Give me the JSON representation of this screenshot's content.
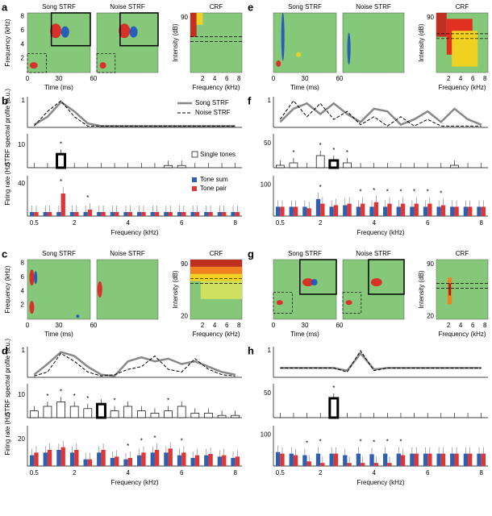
{
  "panels": [
    {
      "type": "strf",
      "label": "a",
      "titles": [
        "Song STRF",
        "Noise STRF",
        "CRF"
      ],
      "ylabel": "Frequency (kHz)",
      "yticks": [
        2,
        4,
        6,
        8
      ],
      "xlabel": "Time (ms)",
      "xticks": [
        0,
        30,
        60
      ],
      "crf_ylabel": "Intensity (dB)",
      "crf_yticks": [
        90
      ],
      "crf_xlabel": "Frequency (kHz)",
      "crf_xticks": [
        2,
        4,
        6,
        8
      ]
    },
    {
      "type": "profile",
      "label": "b",
      "profile_ylabel": "STRF spectral profile (a.u.)",
      "profile_ytick": 1,
      "profile_ylim": [
        0,
        1.15
      ],
      "song": [
        0.1,
        0.4,
        0.95,
        0.6,
        0.15,
        0.05,
        0.05,
        0.05,
        0.05,
        0.05,
        0.05,
        0.05,
        0.05,
        0.05,
        0.05,
        0.05
      ],
      "noise": [
        0.05,
        0.6,
        1,
        0.4,
        0.05,
        0.05,
        0.05,
        0.05,
        0.05,
        0.05,
        0.05,
        0.05,
        0.05,
        0.05,
        0.05,
        0.05
      ],
      "legend": [
        "Song STRF",
        "Noise STRF",
        "Single tones",
        "Tone sum",
        "Tone pair"
      ],
      "single": [
        0,
        0,
        6,
        0,
        0,
        0,
        0,
        0,
        0,
        0,
        1,
        1,
        0,
        0,
        0,
        0
      ],
      "single_ylim": [
        0,
        15
      ],
      "single_ytick": 10,
      "single_stars": [
        2
      ],
      "bold": 2,
      "rate_ylabel": "Firing rate (Hz)",
      "sum": [
        5,
        5,
        5,
        5,
        5,
        5,
        5,
        5,
        5,
        5,
        5,
        5,
        5,
        5,
        5,
        5
      ],
      "pair": [
        5,
        5,
        28,
        5,
        8,
        5,
        5,
        5,
        5,
        5,
        5,
        5,
        5,
        5,
        5,
        5
      ],
      "pair_ylim": [
        0,
        50
      ],
      "pair_ytick": 40,
      "pair_stars": [
        2,
        4
      ],
      "star": "*",
      "xticks": [
        0.5,
        2,
        4,
        6,
        8
      ],
      "xlabel": "Frequency (kHz)"
    },
    {
      "type": "strf",
      "label": "c",
      "titles": [
        "Song STRF",
        "Noise STRF",
        "CRF"
      ],
      "ylabel": "Frequency (kHz)",
      "yticks": [
        2,
        4,
        6,
        8
      ],
      "xlabel": "Time (ms)",
      "xticks": [
        0,
        30,
        60
      ],
      "crf_ylabel": "Intensity (dB)",
      "crf_yticks": [
        90,
        20
      ],
      "crf_xlabel": "Frequency (kHz)",
      "crf_xticks": [
        2,
        4,
        6,
        8
      ]
    },
    {
      "type": "profile",
      "label": "d",
      "profile_ylabel": "STRF spectral profile (a.u.)",
      "profile_ytick": 1,
      "profile_ylim": [
        0,
        1.15
      ],
      "song": [
        0.1,
        0.5,
        0.95,
        0.8,
        0.4,
        0.1,
        0.05,
        0.6,
        0.75,
        0.6,
        0.7,
        0.5,
        0.6,
        0.4,
        0.2,
        0.1
      ],
      "noise": [
        0.05,
        0.2,
        0.9,
        0.6,
        0.2,
        0.05,
        0.1,
        0.3,
        0.4,
        0.8,
        0.3,
        0.2,
        0.7,
        0.3,
        0.1,
        0.05
      ],
      "single": [
        3,
        5,
        7,
        5,
        4,
        6,
        3,
        5,
        3,
        2,
        3,
        5,
        2,
        2,
        1,
        1
      ],
      "single_ylim": [
        0,
        15
      ],
      "single_ytick": 10,
      "single_stars": [
        1,
        2,
        3,
        4,
        6,
        10
      ],
      "bold": 5,
      "rate_ylabel": "Firing rate (Hz)",
      "sum": [
        8,
        10,
        12,
        10,
        5,
        10,
        6,
        5,
        8,
        10,
        10,
        8,
        6,
        8,
        7,
        6
      ],
      "pair": [
        10,
        12,
        14,
        12,
        5,
        12,
        7,
        6,
        10,
        12,
        13,
        10,
        8,
        9,
        8,
        7
      ],
      "pair_ylim": [
        0,
        30
      ],
      "pair_ytick": 20,
      "pair_stars": [
        7,
        8,
        9,
        11
      ],
      "star": "*",
      "xticks": [
        0.5,
        2,
        4,
        6,
        8
      ],
      "xlabel": "Frequency (kHz)"
    },
    {
      "type": "strf",
      "label": "e",
      "titles": [
        "Song STRF",
        "Noise STRF",
        "CRF"
      ],
      "xlabel": "Time (ms)",
      "xticks": [
        0,
        30,
        60
      ],
      "crf_ylabel": "Intensity (dB)",
      "crf_yticks": [
        90
      ],
      "crf_xlabel": "Frequency (kHz)",
      "crf_xticks": [
        2,
        4,
        6,
        8
      ]
    },
    {
      "type": "profile",
      "label": "f",
      "profile_ytick": 1,
      "profile_ylim": [
        0,
        1.15
      ],
      "song": [
        0.2,
        0.7,
        0.9,
        0.5,
        0.9,
        0.5,
        0.2,
        0.7,
        0.6,
        0.1,
        0.3,
        0.6,
        0.2,
        0.7,
        0.3,
        0.1
      ],
      "noise": [
        0.3,
        1,
        0.4,
        0.9,
        0.3,
        0.6,
        0.1,
        0.4,
        0.05,
        0.4,
        0.05,
        0.3,
        0.05,
        0.05,
        0.05,
        0.05
      ],
      "single": [
        5,
        10,
        0,
        25,
        15,
        10,
        0,
        0,
        0,
        0,
        0,
        0,
        0,
        5,
        0,
        0
      ],
      "single_ylim": [
        0,
        70
      ],
      "single_ytick": 50,
      "single_stars": [
        1,
        3,
        4,
        5
      ],
      "bold": 4,
      "sum": [
        30,
        30,
        30,
        55,
        30,
        35,
        30,
        30,
        30,
        30,
        30,
        30,
        30,
        30,
        30,
        30
      ],
      "pair": [
        30,
        30,
        25,
        40,
        35,
        40,
        40,
        45,
        40,
        40,
        40,
        40,
        35,
        30,
        30,
        30
      ],
      "pair_ylim": [
        0,
        130
      ],
      "pair_ytick": 100,
      "pair_stars": [
        3,
        6,
        7,
        8,
        9,
        10,
        11,
        12
      ],
      "star": "*",
      "xticks": [
        0.5,
        2,
        4,
        6,
        8
      ],
      "xlabel": "Frequency (kHz)"
    },
    {
      "type": "strf",
      "label": "g",
      "titles": [
        "Song STRF",
        "Noise STRF",
        "CRF"
      ],
      "xlabel": "Time (ms)",
      "xticks": [
        0,
        30,
        60
      ],
      "crf_ylabel": "Intensity (dB)",
      "crf_yticks": [
        90,
        20
      ],
      "crf_xlabel": "Frequency (kHz)",
      "crf_xticks": [
        2,
        4,
        6,
        8
      ]
    },
    {
      "type": "profile",
      "label": "h",
      "profile_ytick": 1,
      "profile_ylim": [
        0,
        1.15
      ],
      "song": [
        0.35,
        0.35,
        0.35,
        0.35,
        0.35,
        0.25,
        0.9,
        0.3,
        0.35,
        0.35,
        0.35,
        0.35,
        0.35,
        0.35,
        0.35,
        0.35
      ],
      "noise": [
        0.35,
        0.35,
        0.35,
        0.35,
        0.35,
        0.2,
        1,
        0.25,
        0.35,
        0.35,
        0.35,
        0.35,
        0.35,
        0.35,
        0.35,
        0.35
      ],
      "single": [
        0,
        0,
        0,
        0,
        40,
        0,
        0,
        0,
        0,
        0,
        0,
        0,
        0,
        0,
        0,
        0
      ],
      "single_ylim": [
        0,
        70
      ],
      "single_ytick": 50,
      "single_stars": [
        4
      ],
      "bold": 4,
      "sum": [
        45,
        40,
        35,
        40,
        40,
        35,
        40,
        38,
        40,
        40,
        40,
        40,
        40,
        40,
        40,
        40
      ],
      "pair": [
        40,
        35,
        15,
        10,
        40,
        10,
        10,
        10,
        10,
        35,
        40,
        40,
        40,
        40,
        40,
        40
      ],
      "pair_ylim": [
        0,
        130
      ],
      "pair_ytick": 100,
      "pair_stars": [
        2,
        3,
        6,
        7,
        8,
        9
      ],
      "star": "*",
      "xticks": [
        0.5,
        2,
        4,
        6,
        8
      ],
      "xlabel": "Frequency (kHz)"
    }
  ]
}
